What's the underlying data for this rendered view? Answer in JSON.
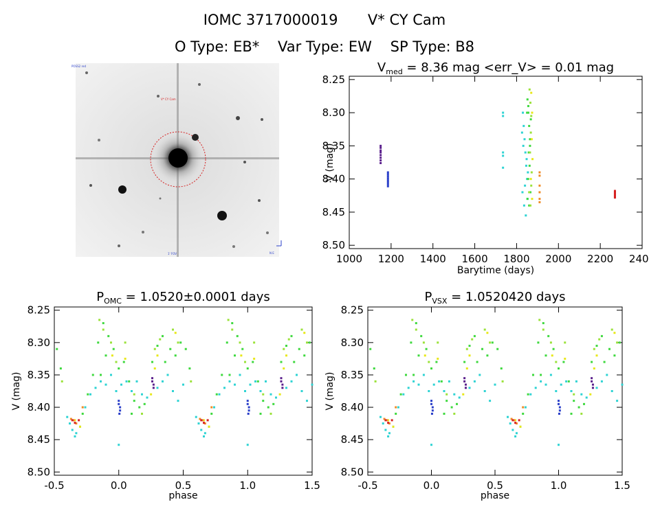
{
  "header": {
    "title_id": "IOMC 3717000019",
    "title_name": "V* CY Cam",
    "otype": "O Type: EB*",
    "vartype": "Var Type: EW",
    "sptype": "SP Type: B8"
  },
  "sky_image": {
    "target_label": "V* CY Cam",
    "top_left_label": "POSS2 red",
    "bottom_label": "1' FOV",
    "compass": "N E"
  },
  "colors": {
    "purple": "#5a1f8c",
    "blue": "#2a3fc9",
    "cyan": "#2ed3d3",
    "green": "#3fd93f",
    "lime": "#9be23a",
    "yellow": "#e8e81a",
    "orange": "#f08a25",
    "red": "#d62020",
    "circle": "#d62020"
  },
  "chart_data": [
    {
      "type": "scatter",
      "title_main": "V",
      "title_sub": "med",
      "title_rest": " = 8.36 mag <err_V> = 0.01 mag",
      "xlabel": "Barytime (days)",
      "ylabel": "V (mag)",
      "xlim": [
        1000,
        2400
      ],
      "ylim": [
        8.505,
        8.245
      ],
      "xticks": [
        "1000",
        "1200",
        "1400",
        "1600",
        "1800",
        "2000",
        "2200",
        "2400"
      ],
      "yticks": [
        "8.25",
        "8.30",
        "8.35",
        "8.40",
        "8.45",
        "8.50"
      ],
      "series": [
        {
          "color": "purple",
          "x": [
            1150,
            1150,
            1150,
            1150,
            1150,
            1150,
            1150,
            1150
          ],
          "y": [
            8.35,
            8.353,
            8.357,
            8.36,
            8.364,
            8.368,
            8.372,
            8.376
          ]
        },
        {
          "color": "blue",
          "x": [
            1185,
            1185,
            1185,
            1185,
            1185,
            1185,
            1185,
            1185
          ],
          "y": [
            8.39,
            8.393,
            8.396,
            8.399,
            8.402,
            8.405,
            8.408,
            8.411
          ]
        },
        {
          "color": "cyan",
          "x": [
            1735,
            1735,
            1735,
            1735,
            1735,
            1830,
            1834,
            1838,
            1842,
            1846,
            1850,
            1828,
            1836,
            1844,
            1852,
            1832,
            1840,
            1848,
            1826,
            1854
          ],
          "y": [
            8.3,
            8.305,
            8.36,
            8.365,
            8.383,
            8.3,
            8.32,
            8.34,
            8.36,
            8.38,
            8.4,
            8.42,
            8.44,
            8.455,
            8.43,
            8.35,
            8.41,
            8.37,
            8.33,
            8.39
          ]
        },
        {
          "color": "green",
          "x": [
            1852,
            1856,
            1860,
            1864,
            1858,
            1862,
            1855,
            1866,
            1850,
            1860,
            1864,
            1868,
            1852,
            1856
          ],
          "y": [
            8.28,
            8.3,
            8.32,
            8.34,
            8.36,
            8.38,
            8.4,
            8.42,
            8.3,
            8.44,
            8.35,
            8.31,
            8.43,
            8.29
          ]
        },
        {
          "color": "lime",
          "x": [
            1862,
            1866,
            1870,
            1868,
            1864,
            1872,
            1860,
            1866,
            1870
          ],
          "y": [
            8.265,
            8.285,
            8.305,
            8.33,
            8.36,
            8.39,
            8.42,
            8.44,
            8.41
          ]
        },
        {
          "color": "yellow",
          "x": [
            1870,
            1874,
            1872,
            1876,
            1868,
            1874
          ],
          "y": [
            8.27,
            8.3,
            8.34,
            8.37,
            8.4,
            8.43
          ]
        },
        {
          "color": "orange",
          "x": [
            1910,
            1910,
            1910,
            1910,
            1910,
            1910
          ],
          "y": [
            8.39,
            8.395,
            8.41,
            8.42,
            8.43,
            8.435
          ]
        },
        {
          "color": "red",
          "x": [
            2270,
            2270,
            2270,
            2270,
            2270,
            2270
          ],
          "y": [
            8.418,
            8.42,
            8.422,
            8.424,
            8.426,
            8.428
          ]
        }
      ]
    },
    {
      "type": "scatter",
      "title_main": "P",
      "title_sub": "OMC",
      "title_rest": " = 1.0520±0.0001 days",
      "xlabel": "phase",
      "ylabel": "V (mag)",
      "xlim": [
        -0.5,
        1.5
      ],
      "ylim": [
        8.505,
        8.245
      ],
      "xticks": [
        "-0.5",
        "0.0",
        "0.5",
        "1.0",
        "1.5"
      ],
      "yticks": [
        "8.25",
        "8.30",
        "8.35",
        "8.40",
        "8.45",
        "8.50"
      ],
      "series": [
        {
          "color": "cyan",
          "x": [
            -0.4,
            -0.38,
            -0.36,
            -0.33,
            -0.3,
            -0.26,
            -0.22,
            -0.18,
            -0.14,
            -0.1,
            -0.06,
            -0.02,
            0.02,
            0.06,
            0.1,
            0.14,
            0.18,
            0.22,
            0.3,
            0.34,
            0.38,
            0.42,
            0.46,
            0.5,
            0.0,
            -0.34
          ],
          "y": [
            8.415,
            8.425,
            8.435,
            8.44,
            8.43,
            8.4,
            8.38,
            8.37,
            8.36,
            8.365,
            8.35,
            8.375,
            8.365,
            8.36,
            8.375,
            8.36,
            8.38,
            8.385,
            8.37,
            8.36,
            8.35,
            8.375,
            8.39,
            8.365,
            8.458,
            8.445
          ]
        },
        {
          "color": "green",
          "x": [
            -0.48,
            -0.45,
            -0.28,
            -0.24,
            -0.2,
            -0.16,
            -0.12,
            -0.08,
            -0.04,
            0.0,
            0.04,
            0.08,
            0.12,
            0.16,
            0.2,
            0.26,
            0.3,
            0.34,
            0.4,
            0.44,
            0.48,
            -0.14,
            -0.1,
            0.1,
            0.36
          ],
          "y": [
            8.31,
            8.34,
            8.41,
            8.38,
            8.35,
            8.3,
            8.27,
            8.29,
            8.31,
            8.34,
            8.33,
            8.36,
            8.39,
            8.4,
            8.395,
            8.33,
            8.305,
            8.29,
            8.31,
            8.32,
            8.3,
            8.35,
            8.32,
            8.41,
            8.33
          ]
        },
        {
          "color": "lime",
          "x": [
            -0.15,
            -0.12,
            -0.06,
            -0.02,
            0.05,
            0.12,
            0.18,
            0.28,
            0.42,
            0.46,
            -0.44,
            0.32
          ],
          "y": [
            8.265,
            8.28,
            8.3,
            8.33,
            8.3,
            8.38,
            8.41,
            8.31,
            8.28,
            8.3,
            8.36,
            8.295
          ]
        },
        {
          "color": "yellow",
          "x": [
            -0.34,
            -0.3,
            0.05,
            0.25,
            0.28,
            0.3,
            -0.05,
            0.44
          ],
          "y": [
            8.42,
            8.43,
            8.325,
            8.38,
            8.34,
            8.32,
            8.32,
            8.285
          ]
        },
        {
          "color": "orange",
          "x": [
            -0.37,
            -0.35,
            -0.33,
            -0.28
          ],
          "y": [
            8.418,
            8.42,
            8.425,
            8.4
          ]
        },
        {
          "color": "red",
          "x": [
            -0.36,
            -0.34,
            -0.31
          ],
          "y": [
            8.42,
            8.424,
            8.42
          ]
        },
        {
          "color": "purple",
          "x": [
            0.26,
            0.26,
            0.27,
            0.27
          ],
          "y": [
            8.355,
            8.36,
            8.365,
            8.37
          ]
        },
        {
          "color": "blue",
          "x": [
            0.0,
            0.0,
            0.01,
            0.01,
            0.005
          ],
          "y": [
            8.39,
            8.395,
            8.4,
            8.405,
            8.41
          ]
        }
      ]
    },
    {
      "type": "scatter",
      "title_main": "P",
      "title_sub": "VSX",
      "title_rest": " = 1.0520420 days",
      "xlabel": "phase",
      "ylabel": "V (mag)",
      "xlim": [
        -0.5,
        1.5
      ],
      "ylim": [
        8.505,
        8.245
      ],
      "xticks": [
        "-0.5",
        "0.0",
        "0.5",
        "1.0",
        "1.5"
      ],
      "yticks": [
        "8.25",
        "8.30",
        "8.35",
        "8.40",
        "8.45",
        "8.50"
      ],
      "series": [
        {
          "color": "cyan",
          "x": [
            -0.4,
            -0.38,
            -0.36,
            -0.33,
            -0.3,
            -0.26,
            -0.22,
            -0.18,
            -0.14,
            -0.1,
            -0.06,
            -0.02,
            0.02,
            0.06,
            0.1,
            0.14,
            0.18,
            0.22,
            0.3,
            0.34,
            0.38,
            0.42,
            0.46,
            0.5,
            0.0,
            -0.34
          ],
          "y": [
            8.415,
            8.425,
            8.435,
            8.44,
            8.43,
            8.4,
            8.38,
            8.37,
            8.36,
            8.365,
            8.35,
            8.375,
            8.365,
            8.36,
            8.375,
            8.36,
            8.38,
            8.385,
            8.37,
            8.36,
            8.35,
            8.375,
            8.39,
            8.365,
            8.458,
            8.445
          ]
        },
        {
          "color": "green",
          "x": [
            -0.48,
            -0.45,
            -0.28,
            -0.24,
            -0.2,
            -0.16,
            -0.12,
            -0.08,
            -0.04,
            0.0,
            0.04,
            0.08,
            0.12,
            0.16,
            0.2,
            0.26,
            0.3,
            0.34,
            0.4,
            0.44,
            0.48,
            -0.14,
            -0.1,
            0.1,
            0.36
          ],
          "y": [
            8.31,
            8.34,
            8.41,
            8.38,
            8.35,
            8.3,
            8.27,
            8.29,
            8.31,
            8.34,
            8.33,
            8.36,
            8.39,
            8.4,
            8.395,
            8.33,
            8.305,
            8.29,
            8.31,
            8.32,
            8.3,
            8.35,
            8.32,
            8.41,
            8.33
          ]
        },
        {
          "color": "lime",
          "x": [
            -0.15,
            -0.12,
            -0.06,
            -0.02,
            0.05,
            0.12,
            0.18,
            0.28,
            0.42,
            0.46,
            -0.44,
            0.32
          ],
          "y": [
            8.265,
            8.28,
            8.3,
            8.33,
            8.3,
            8.38,
            8.41,
            8.31,
            8.28,
            8.3,
            8.36,
            8.295
          ]
        },
        {
          "color": "yellow",
          "x": [
            -0.34,
            -0.3,
            0.05,
            0.25,
            0.28,
            0.3,
            -0.05,
            0.44
          ],
          "y": [
            8.42,
            8.43,
            8.325,
            8.38,
            8.34,
            8.32,
            8.32,
            8.285
          ]
        },
        {
          "color": "orange",
          "x": [
            -0.37,
            -0.35,
            -0.33,
            -0.28
          ],
          "y": [
            8.418,
            8.42,
            8.425,
            8.4
          ]
        },
        {
          "color": "red",
          "x": [
            -0.36,
            -0.34,
            -0.31
          ],
          "y": [
            8.42,
            8.424,
            8.42
          ]
        },
        {
          "color": "purple",
          "x": [
            0.26,
            0.26,
            0.27,
            0.27
          ],
          "y": [
            8.355,
            8.36,
            8.365,
            8.37
          ]
        },
        {
          "color": "blue",
          "x": [
            0.0,
            0.0,
            0.01,
            0.01,
            0.005
          ],
          "y": [
            8.39,
            8.395,
            8.4,
            8.405,
            8.41
          ]
        }
      ]
    }
  ]
}
